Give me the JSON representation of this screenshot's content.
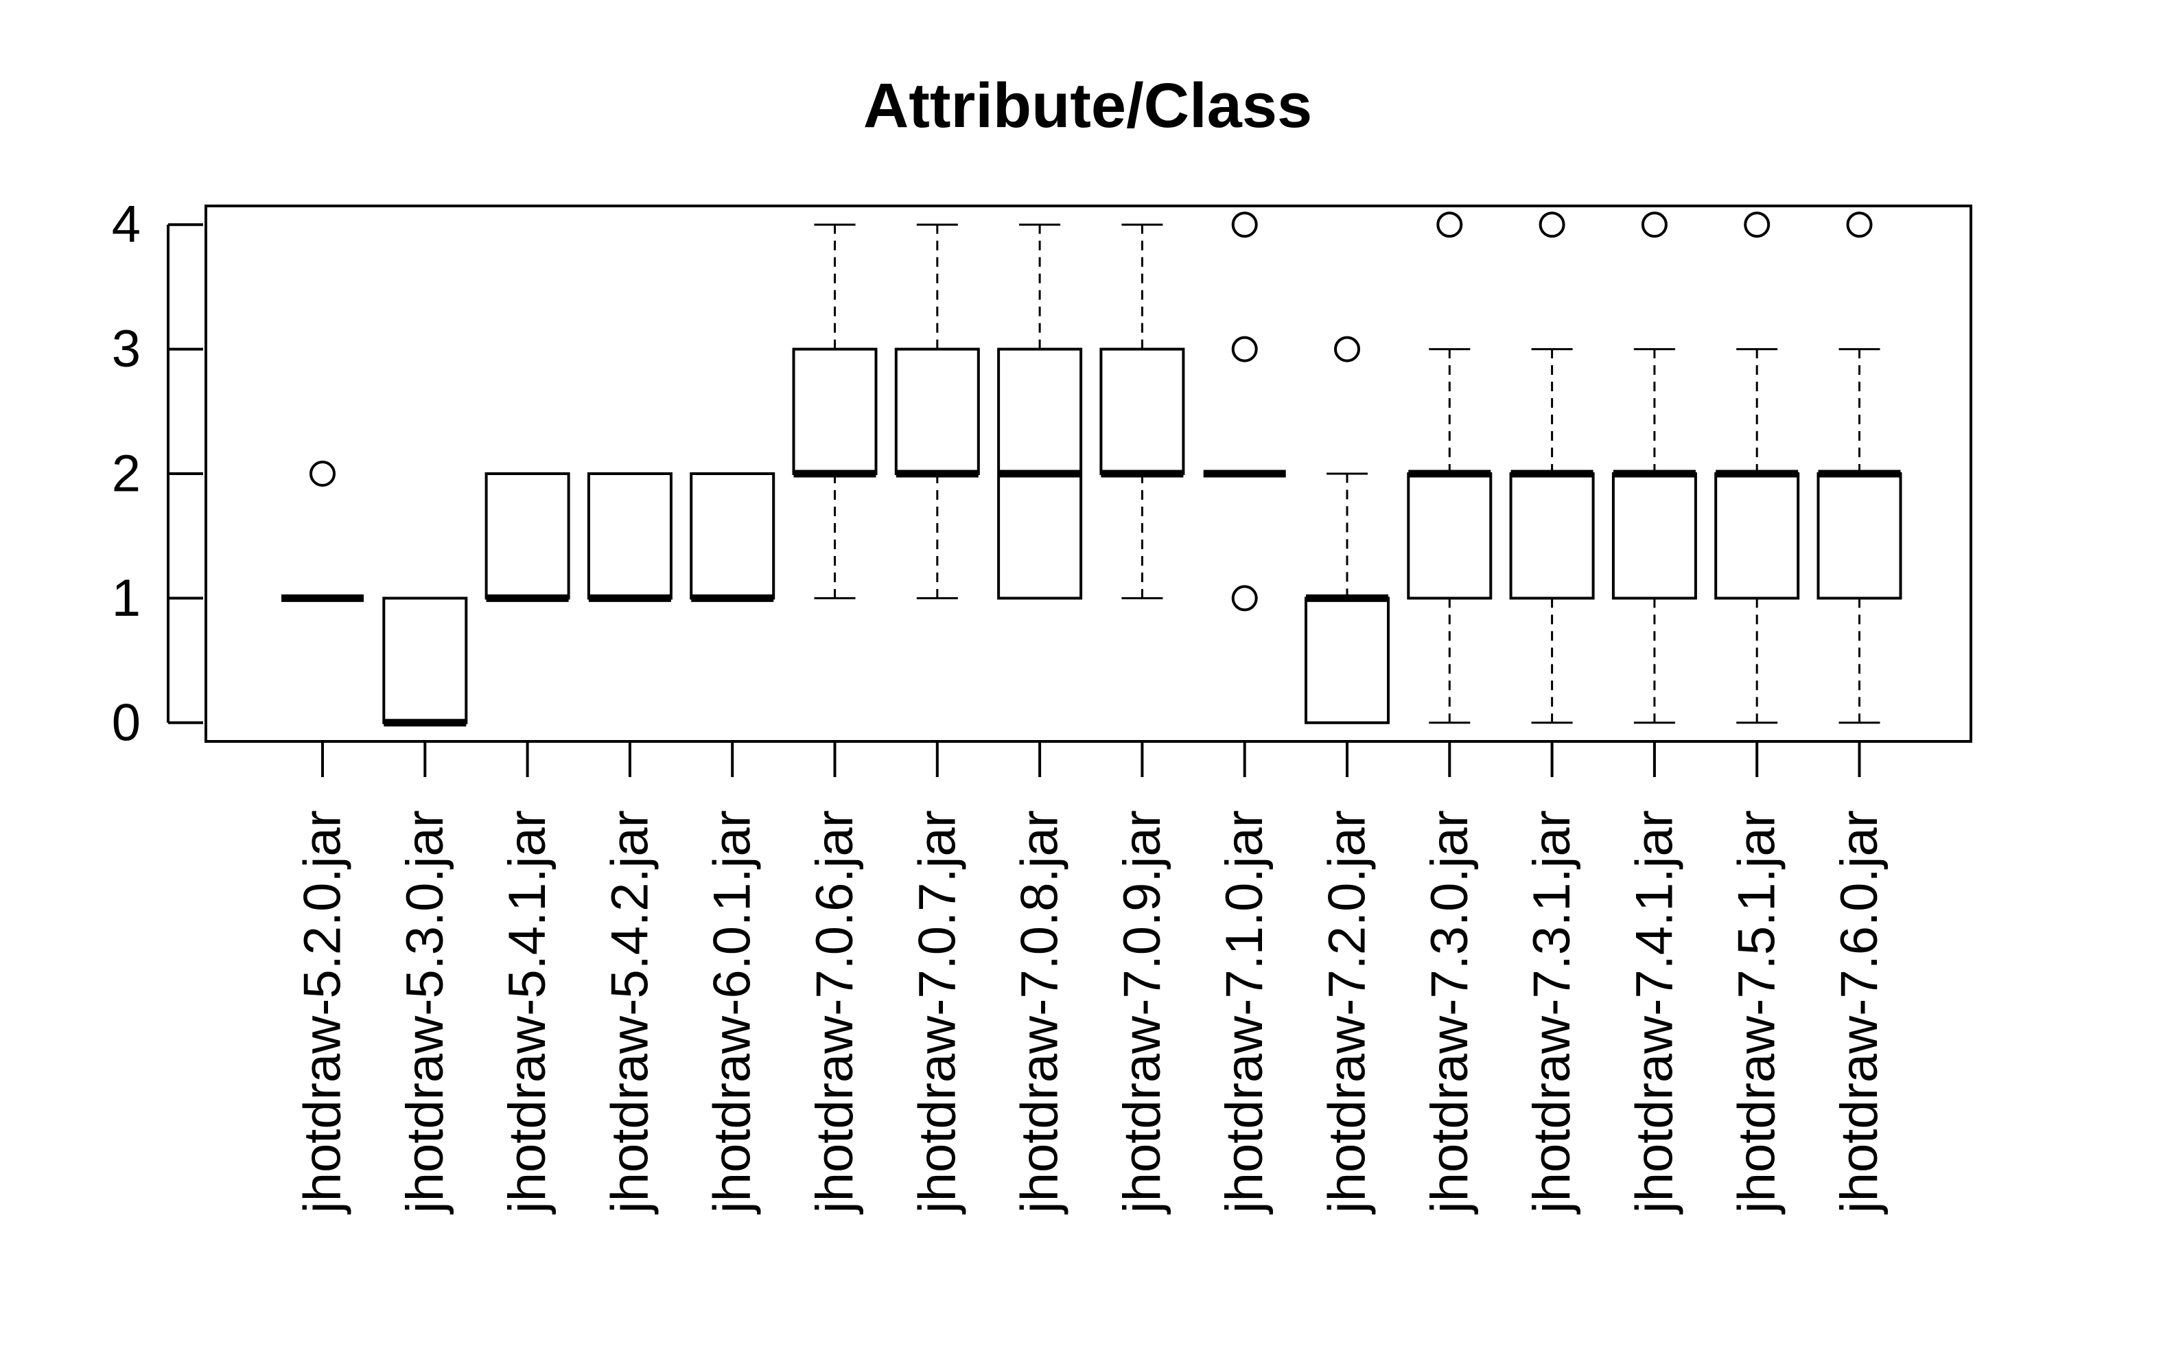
{
  "chart_data": {
    "type": "boxplot",
    "title": "Attribute/Class",
    "xlabel": "",
    "ylabel": "",
    "ylim": [
      -0.15,
      4.15
    ],
    "yticks": [
      0,
      1,
      2,
      3,
      4
    ],
    "grid": false,
    "legend": "none",
    "categories": [
      "jhotdraw-5.2.0.jar",
      "jhotdraw-5.3.0.jar",
      "jhotdraw-5.4.1.jar",
      "jhotdraw-5.4.2.jar",
      "jhotdraw-6.0.1.jar",
      "jhotdraw-7.0.6.jar",
      "jhotdraw-7.0.7.jar",
      "jhotdraw-7.0.8.jar",
      "jhotdraw-7.0.9.jar",
      "jhotdraw-7.1.0.jar",
      "jhotdraw-7.2.0.jar",
      "jhotdraw-7.3.0.jar",
      "jhotdraw-7.3.1.jar",
      "jhotdraw-7.4.1.jar",
      "jhotdraw-7.5.1.jar",
      "jhotdraw-7.6.0.jar"
    ],
    "boxes": [
      {
        "whisker_low": 1,
        "q1": 1,
        "median": 1,
        "q3": 1,
        "whisker_high": 1,
        "outliers": [
          2
        ]
      },
      {
        "whisker_low": 0,
        "q1": 0,
        "median": 0,
        "q3": 1,
        "whisker_high": 1,
        "outliers": []
      },
      {
        "whisker_low": 1,
        "q1": 1,
        "median": 1,
        "q3": 2,
        "whisker_high": 2,
        "outliers": []
      },
      {
        "whisker_low": 1,
        "q1": 1,
        "median": 1,
        "q3": 2,
        "whisker_high": 2,
        "outliers": []
      },
      {
        "whisker_low": 1,
        "q1": 1,
        "median": 1,
        "q3": 2,
        "whisker_high": 2,
        "outliers": []
      },
      {
        "whisker_low": 1,
        "q1": 2,
        "median": 2,
        "q3": 3,
        "whisker_high": 4,
        "outliers": []
      },
      {
        "whisker_low": 1,
        "q1": 2,
        "median": 2,
        "q3": 3,
        "whisker_high": 4,
        "outliers": []
      },
      {
        "whisker_low": 1,
        "q1": 1,
        "median": 2,
        "q3": 3,
        "whisker_high": 4,
        "outliers": []
      },
      {
        "whisker_low": 1,
        "q1": 2,
        "median": 2,
        "q3": 3,
        "whisker_high": 4,
        "outliers": []
      },
      {
        "whisker_low": 2,
        "q1": 2,
        "median": 2,
        "q3": 2,
        "whisker_high": 2,
        "outliers": [
          4,
          3,
          1
        ]
      },
      {
        "whisker_low": 0,
        "q1": 0,
        "median": 1,
        "q3": 1,
        "whisker_high": 2,
        "outliers": [
          3
        ]
      },
      {
        "whisker_low": 0,
        "q1": 1,
        "median": 2,
        "q3": 2,
        "whisker_high": 3,
        "outliers": [
          4
        ]
      },
      {
        "whisker_low": 0,
        "q1": 1,
        "median": 2,
        "q3": 2,
        "whisker_high": 3,
        "outliers": [
          4
        ]
      },
      {
        "whisker_low": 0,
        "q1": 1,
        "median": 2,
        "q3": 2,
        "whisker_high": 3,
        "outliers": [
          4
        ]
      },
      {
        "whisker_low": 0,
        "q1": 1,
        "median": 2,
        "q3": 2,
        "whisker_high": 3,
        "outliers": [
          4
        ]
      },
      {
        "whisker_low": 0,
        "q1": 1,
        "median": 2,
        "q3": 2,
        "whisker_high": 3,
        "outliers": [
          4
        ]
      }
    ]
  }
}
